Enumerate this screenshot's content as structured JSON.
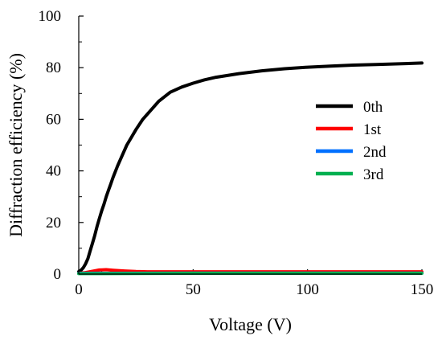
{
  "chart_data": {
    "type": "line",
    "xlabel": "Voltage (V)",
    "ylabel": "Diffraction efficiency (%)",
    "xlim": [
      0,
      150
    ],
    "ylim": [
      0,
      100
    ],
    "xticks": [
      "0",
      "50",
      "100",
      "150"
    ],
    "yticks": [
      "0",
      "20",
      "40",
      "60",
      "80",
      "100"
    ],
    "grid": false,
    "legend_position": "right-middle",
    "series": [
      {
        "name": "0th",
        "color": "#000000",
        "x": [
          0,
          1,
          2,
          3,
          4,
          5,
          6,
          7,
          8,
          9,
          10,
          11,
          12,
          13,
          14,
          15,
          17,
          19,
          21,
          23,
          25,
          28,
          31,
          35,
          40,
          45,
          50,
          55,
          60,
          70,
          80,
          90,
          100,
          110,
          120,
          130,
          140,
          150
        ],
        "values": [
          1,
          1.5,
          2.5,
          4,
          6,
          9,
          12,
          15,
          18.5,
          21.5,
          24.5,
          27,
          30,
          32.5,
          35,
          37.5,
          42,
          46,
          50,
          53,
          56,
          60,
          63,
          67,
          70.5,
          72.5,
          74,
          75.3,
          76.3,
          77.7,
          78.8,
          79.6,
          80.2,
          80.6,
          81,
          81.2,
          81.5,
          81.8
        ]
      },
      {
        "name": "1st",
        "color": "#ff0000",
        "x": [
          0,
          3,
          6,
          9,
          12,
          15,
          20,
          25,
          30,
          50,
          100,
          150
        ],
        "values": [
          0.3,
          0.6,
          1.1,
          1.6,
          1.7,
          1.5,
          1.2,
          1.0,
          0.9,
          0.9,
          0.9,
          0.9
        ]
      },
      {
        "name": "2nd",
        "color": "#0070ff",
        "x": [
          0,
          50,
          100,
          150
        ],
        "values": [
          0.3,
          0.4,
          0.4,
          0.4
        ]
      },
      {
        "name": "3rd",
        "color": "#00b050",
        "x": [
          0,
          50,
          100,
          150
        ],
        "values": [
          0.2,
          0.3,
          0.3,
          0.3
        ]
      }
    ]
  }
}
